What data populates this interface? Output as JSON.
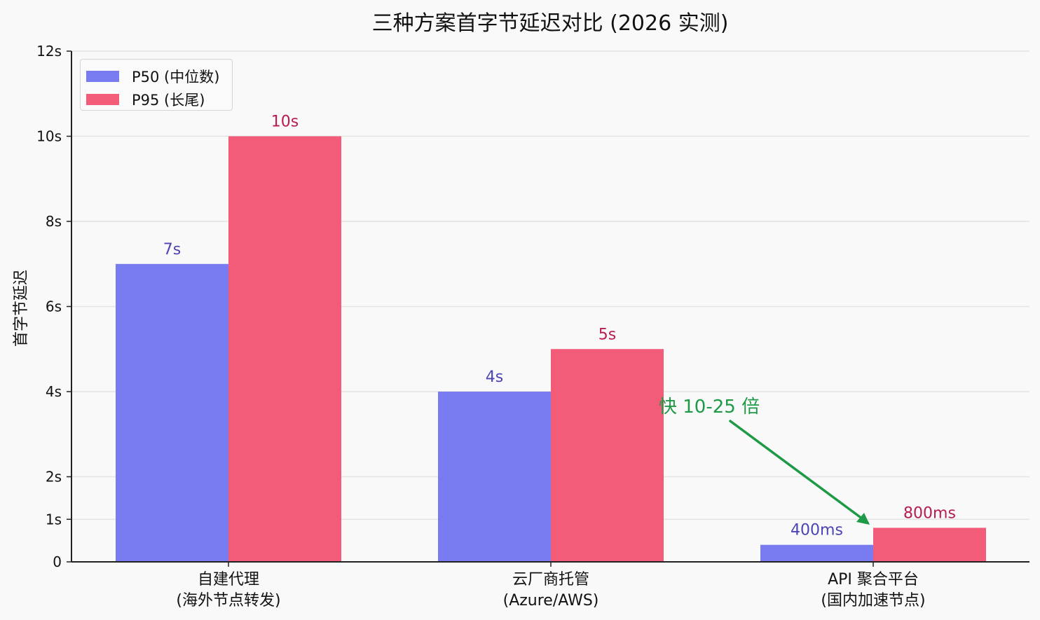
{
  "chart_data": {
    "type": "bar",
    "title": "三种方案首字节延迟对比 (2026 实测)",
    "xlabel": "",
    "ylabel": "首字节延迟",
    "ylim": [
      0,
      12
    ],
    "yticks": [
      {
        "value": 0,
        "label": "0"
      },
      {
        "value": 1,
        "label": "1s"
      },
      {
        "value": 2,
        "label": "2s"
      },
      {
        "value": 4,
        "label": "4s"
      },
      {
        "value": 6,
        "label": "6s"
      },
      {
        "value": 8,
        "label": "8s"
      },
      {
        "value": 10,
        "label": "10s"
      },
      {
        "value": 12,
        "label": "12s"
      }
    ],
    "grid": "y",
    "legend_position": "upper left",
    "categories": [
      {
        "line1": "自建代理",
        "line2": "(海外节点转发)"
      },
      {
        "line1": "云厂商托管",
        "line2": "(Azure/AWS)"
      },
      {
        "line1": "API 聚合平台",
        "line2": "(国内加速节点)"
      }
    ],
    "series": [
      {
        "name": "P50 (中位数)",
        "color": "#787cf0",
        "label_color": "#4b44b5",
        "values": [
          7,
          4,
          0.4
        ],
        "labels": [
          "7s",
          "4s",
          "400ms"
        ]
      },
      {
        "name": "P95 (长尾)",
        "color": "#f25c78",
        "label_color": "#b91c4e",
        "values": [
          10,
          5,
          0.8
        ],
        "labels": [
          "10s",
          "5s",
          "800ms"
        ]
      }
    ],
    "annotations": [
      {
        "text": "快 10-25 倍",
        "color": "#1e9a46",
        "arrow_to_category": 2,
        "arrow_to_series": 1
      }
    ]
  }
}
